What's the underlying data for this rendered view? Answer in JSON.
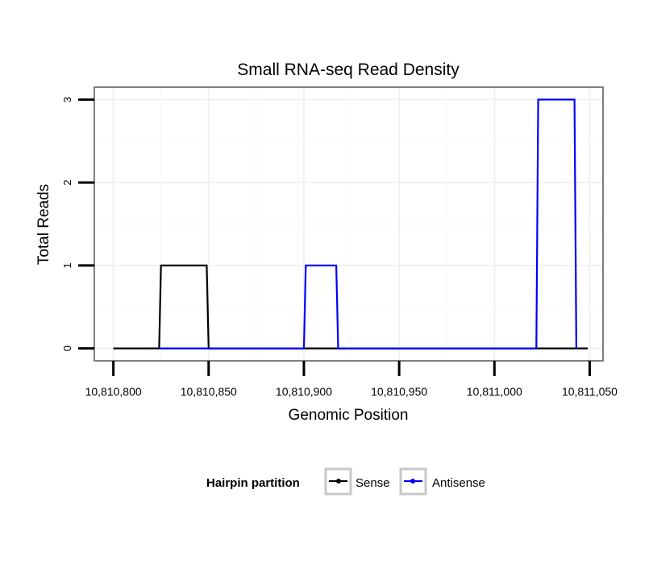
{
  "chart_data": {
    "type": "line",
    "title": "Small RNA-seq Read Density",
    "xlabel": "Genomic Position",
    "ylabel": "Total Reads",
    "xlim": [
      10810790,
      10811057
    ],
    "ylim": [
      -0.15,
      3.15
    ],
    "xticks": [
      10810800,
      10810850,
      10810900,
      10810950,
      10811000,
      10811050
    ],
    "xtick_labels": [
      "10,810,800",
      "10,810,850",
      "10,810,900",
      "10,810,950",
      "10,811,000",
      "10,811,050"
    ],
    "yticks": [
      0,
      1,
      2,
      3
    ],
    "ytick_labels": [
      "0",
      "1",
      "2",
      "3"
    ],
    "grid": true,
    "legend": {
      "title": "Hairpin partition",
      "position": "bottom"
    },
    "series": [
      {
        "name": "Sense",
        "color": "#000000",
        "x": [
          10810800,
          10810824,
          10810825,
          10810849,
          10810850,
          10811049
        ],
        "y": [
          0,
          0,
          1,
          1,
          0,
          0
        ]
      },
      {
        "name": "Antisense",
        "color": "#0000ff",
        "x": [
          10810824,
          10810850,
          10810900,
          10810901,
          10810917,
          10810918,
          10811022,
          10811023,
          10811042,
          10811043
        ],
        "y": [
          0,
          0,
          0,
          1,
          1,
          0,
          0,
          3,
          3,
          0
        ]
      }
    ]
  }
}
